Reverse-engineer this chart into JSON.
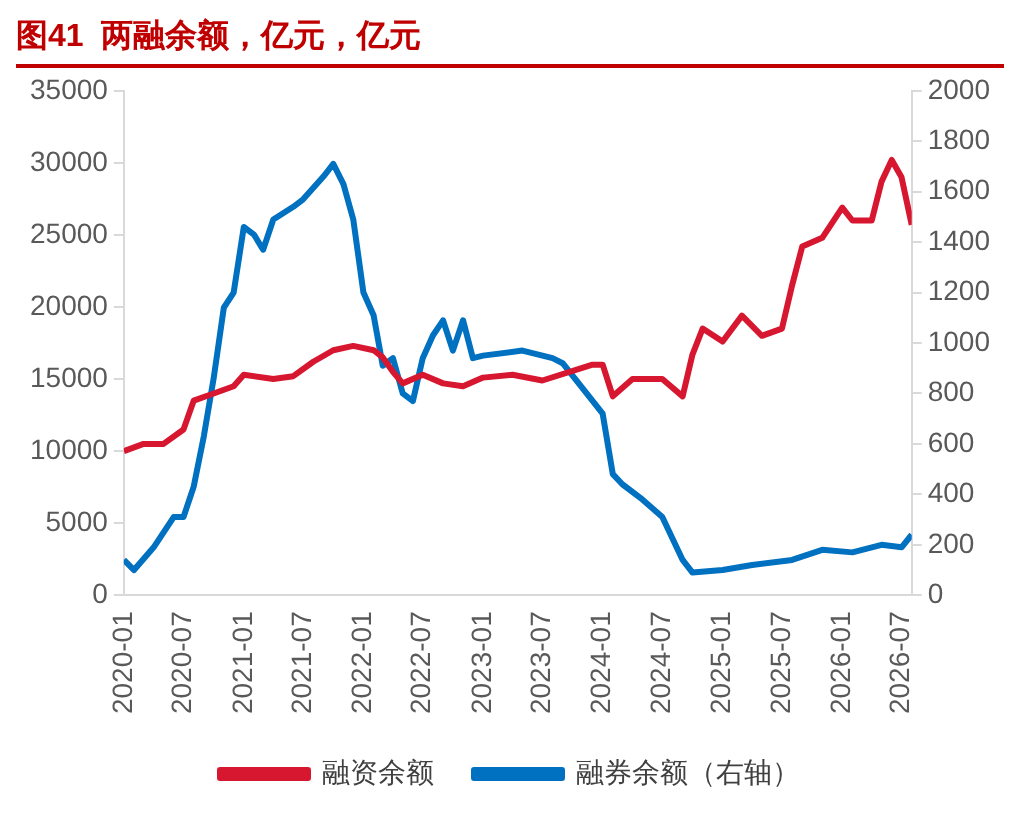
{
  "chart_data": {
    "type": "line",
    "title": "图41  两融余额，亿元，亿元",
    "xlim": [
      "2020-01",
      "2026-08"
    ],
    "xticks": [
      "2020-01",
      "2020-07",
      "2021-01",
      "2021-07",
      "2022-01",
      "2022-07",
      "2023-01",
      "2023-07",
      "2024-01",
      "2024-07",
      "2025-01",
      "2025-07",
      "2026-01",
      "2026-07"
    ],
    "ylim": [
      0,
      35000
    ],
    "yticks": [
      0,
      5000,
      10000,
      15000,
      20000,
      25000,
      30000,
      35000
    ],
    "y2lim": [
      0,
      2000
    ],
    "y2ticks": [
      0,
      200,
      400,
      600,
      800,
      1000,
      1200,
      1400,
      1600,
      1800,
      2000
    ],
    "grid": false,
    "legend": "bottom",
    "marker": "none",
    "line_style": "solid",
    "series": [
      {
        "name": "融资余额",
        "color": "#d7172f",
        "x": [
          "2020-01",
          "2020-03",
          "2020-05",
          "2020-07",
          "2020-08",
          "2020-10",
          "2020-12",
          "2021-01",
          "2021-04",
          "2021-06",
          "2021-08",
          "2021-10",
          "2021-12",
          "2022-02",
          "2022-03",
          "2022-04",
          "2022-05",
          "2022-07",
          "2022-09",
          "2022-11",
          "2023-01",
          "2023-04",
          "2023-07",
          "2023-12",
          "2024-01",
          "2024-02",
          "2024-04",
          "2024-07",
          "2024-09",
          "2024-10",
          "2024-11",
          "2025-01",
          "2025-03",
          "2025-05",
          "2025-07",
          "2025-08",
          "2025-09",
          "2025-11",
          "2026-01",
          "2026-02",
          "2026-04",
          "2026-05",
          "2026-06",
          "2026-07",
          "2026-08"
        ],
        "values": [
          10000,
          10500,
          10500,
          11500,
          13500,
          14000,
          14500,
          15300,
          15000,
          15200,
          16200,
          17000,
          17300,
          17000,
          16500,
          15500,
          14700,
          15300,
          14700,
          14500,
          15100,
          15300,
          14900,
          16000,
          16000,
          13800,
          15000,
          15000,
          13800,
          16700,
          18500,
          17600,
          19400,
          18000,
          18500,
          21500,
          24200,
          24800,
          26900,
          26000,
          26000,
          28700,
          30200,
          29000,
          25700
        ]
      },
      {
        "name": "融券余额（右轴）",
        "color": "#0070c0",
        "axis": "y2",
        "x": [
          "2020-01",
          "2020-02",
          "2020-04",
          "2020-06",
          "2020-07",
          "2020-08",
          "2020-09",
          "2020-10",
          "2020-11",
          "2020-12",
          "2021-01",
          "2021-02",
          "2021-03",
          "2021-04",
          "2021-06",
          "2021-07",
          "2021-09",
          "2021-10",
          "2021-11",
          "2021-12",
          "2022-01",
          "2022-02",
          "2022-03",
          "2022-04",
          "2022-05",
          "2022-06",
          "2022-07",
          "2022-08",
          "2022-09",
          "2022-10",
          "2022-11",
          "2022-12",
          "2023-01",
          "2023-05",
          "2023-08",
          "2023-09",
          "2023-11",
          "2024-01",
          "2024-02",
          "2024-03",
          "2024-05",
          "2024-07",
          "2024-09",
          "2024-10",
          "2025-01",
          "2025-04",
          "2025-08",
          "2025-11",
          "2026-02",
          "2026-05",
          "2026-07",
          "2026-08"
        ],
        "values": [
          140,
          100,
          190,
          310,
          310,
          430,
          630,
          860,
          1140,
          1200,
          1460,
          1430,
          1370,
          1490,
          1540,
          1570,
          1660,
          1710,
          1630,
          1490,
          1200,
          1110,
          910,
          940,
          800,
          770,
          940,
          1030,
          1090,
          970,
          1090,
          940,
          950,
          970,
          940,
          920,
          820,
          720,
          480,
          440,
          380,
          310,
          140,
          90,
          100,
          120,
          140,
          180,
          170,
          200,
          190,
          240
        ]
      }
    ]
  }
}
